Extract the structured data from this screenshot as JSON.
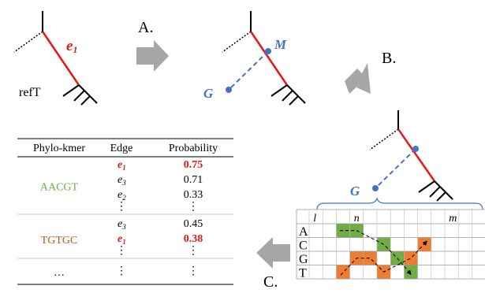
{
  "steps": {
    "a": "A.",
    "b": "B.",
    "c": "C."
  },
  "tree_labels": {
    "edge_e": "e",
    "edge_sub": "1",
    "ref_tree": "refT",
    "node_m": "M",
    "node_g_1": "G",
    "node_g_2": "G"
  },
  "table": {
    "headers": [
      "Phylo-kmer",
      "Edge",
      "Probability"
    ],
    "groups": [
      {
        "kmer": "AACGT",
        "kmer_color": "#70ad47",
        "rows": [
          {
            "edge": "e",
            "sub": "1",
            "prob": "0.75",
            "highlight": true
          },
          {
            "edge": "e",
            "sub": "3",
            "prob": "0.71",
            "highlight": false
          },
          {
            "edge": "e",
            "sub": "2",
            "prob": "0.33",
            "highlight": false
          }
        ],
        "more": "⋮"
      },
      {
        "kmer": "TGTGC",
        "kmer_color": "#c55a11",
        "rows": [
          {
            "edge": "e",
            "sub": "3",
            "prob": "0.45",
            "highlight": false
          },
          {
            "edge": "e",
            "sub": "1",
            "prob": "0.38",
            "highlight": true
          }
        ],
        "more": "⋮"
      }
    ],
    "ellipsis": "…",
    "ellipsis_more": "⋮"
  },
  "grid": {
    "col_labels": [
      "l",
      "n",
      "m"
    ],
    "row_labels": [
      "A",
      "C",
      "G",
      "T"
    ],
    "green_cells": [
      [
        0,
        2
      ],
      [
        0,
        3
      ],
      [
        1,
        5
      ],
      [
        2,
        6
      ],
      [
        3,
        7
      ]
    ],
    "orange_cells": [
      [
        1,
        8
      ],
      [
        2,
        3
      ],
      [
        2,
        4
      ],
      [
        2,
        7
      ],
      [
        3,
        2
      ],
      [
        3,
        5
      ]
    ]
  },
  "colors": {
    "highlight_edge": "#e31a1c",
    "graft": "#4472c4",
    "arrow": "#a6a6a6",
    "green": "#70ad47",
    "orange": "#ed7d31"
  }
}
